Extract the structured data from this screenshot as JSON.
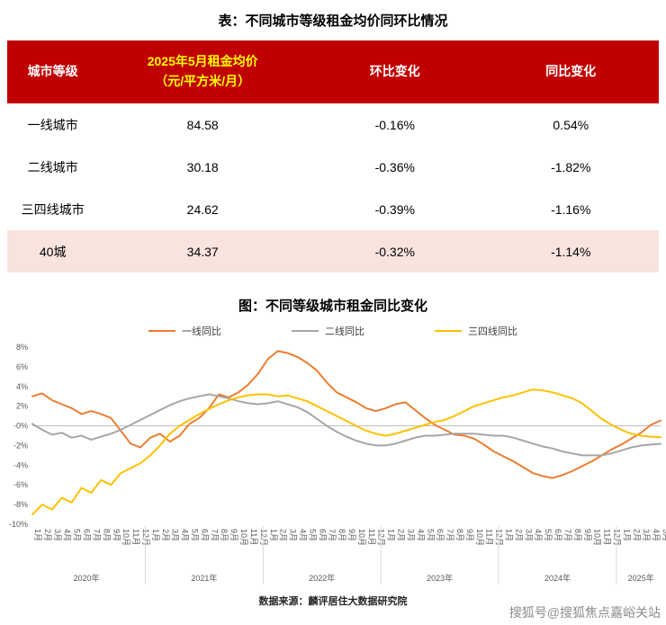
{
  "page": {
    "table_title": "表：不同城市等级租金均价同环比情况",
    "chart_title": "图：不同等级城市租金同比变化",
    "source": "数据来源：麟评居住大数据研究院",
    "watermark": "搜狐号@搜狐焦点嘉峪关站"
  },
  "colors": {
    "header_bg": "#C00000",
    "header_text": "#FFFFFF",
    "header_accent_text": "#FFFF00",
    "highlight_row_bg": "#F9E3DE",
    "tier1_line": "#ED7D31",
    "tier2_line": "#A6A6A6",
    "tier34_line": "#FFC000",
    "zero_axis": "#BFBFBF"
  },
  "table": {
    "headers": [
      "城市等级",
      "2025年5月租金均价\n（元/平方米/月）",
      "环比变化",
      "同比变化"
    ],
    "rows": [
      {
        "tier": "一线城市",
        "price": "84.58",
        "mom": "-0.16%",
        "yoy": "0.54%",
        "highlight": false
      },
      {
        "tier": "二线城市",
        "price": "30.18",
        "mom": "-0.36%",
        "yoy": "-1.82%",
        "highlight": false
      },
      {
        "tier": "三四线城市",
        "price": "24.62",
        "mom": "-0.39%",
        "yoy": "-1.16%",
        "highlight": false
      },
      {
        "tier": "40城",
        "price": "34.37",
        "mom": "-0.32%",
        "yoy": "-1.14%",
        "highlight": true
      }
    ]
  },
  "chart_data": {
    "type": "line",
    "title": "图：不同等级城市租金同比变化",
    "ylim": [
      -10,
      8
    ],
    "yticks": [
      "8%",
      "6%",
      "4%",
      "2%",
      "-0%",
      "-2%",
      "-4%",
      "-6%",
      "-8%",
      "-10%"
    ],
    "grid": "zero-line-only",
    "legend_position": "top",
    "x": [
      "1月",
      "2月",
      "3月",
      "4月",
      "5月",
      "6月",
      "7月",
      "8月",
      "9月",
      "10月",
      "11月",
      "12月",
      "1月",
      "2月",
      "3月",
      "4月",
      "5月",
      "6月",
      "7月",
      "8月",
      "9月",
      "10月",
      "11月",
      "12月",
      "1月",
      "2月",
      "3月",
      "4月",
      "5月",
      "6月",
      "7月",
      "8月",
      "9月",
      "10月",
      "11月",
      "12月",
      "1月",
      "2月",
      "3月",
      "4月",
      "5月",
      "6月",
      "7月",
      "8月",
      "9月",
      "10月",
      "11月",
      "12月",
      "1月",
      "2月",
      "3月",
      "4月",
      "5月",
      "6月",
      "7月",
      "8月",
      "9月",
      "10月",
      "11月",
      "12月",
      "1月",
      "2月",
      "3月",
      "4月",
      "5月"
    ],
    "year_groups": [
      {
        "label": "2020年",
        "months": 12
      },
      {
        "label": "2021年",
        "months": 12
      },
      {
        "label": "2022年",
        "months": 12
      },
      {
        "label": "2023年",
        "months": 12
      },
      {
        "label": "2024年",
        "months": 12
      },
      {
        "label": "2025年",
        "months": 5
      }
    ],
    "series": [
      {
        "name": "一线同比",
        "color": "#ED7D31",
        "values": [
          3.0,
          3.3,
          2.6,
          2.2,
          1.8,
          1.2,
          1.5,
          1.2,
          0.8,
          -0.5,
          -1.8,
          -2.2,
          -1.2,
          -0.8,
          -1.6,
          -1.0,
          0.2,
          0.8,
          1.8,
          3.2,
          2.9,
          3.4,
          4.2,
          5.3,
          6.8,
          7.6,
          7.4,
          7.0,
          6.4,
          5.6,
          4.4,
          3.4,
          2.9,
          2.4,
          1.8,
          1.5,
          1.8,
          2.2,
          2.4,
          1.6,
          0.8,
          0.1,
          -0.4,
          -0.9,
          -1.0,
          -1.3,
          -1.9,
          -2.6,
          -3.1,
          -3.6,
          -4.2,
          -4.8,
          -5.1,
          -5.3,
          -5.0,
          -4.6,
          -4.1,
          -3.6,
          -3.0,
          -2.4,
          -1.9,
          -1.3,
          -0.7,
          0.1,
          0.54
        ]
      },
      {
        "name": "二线同比",
        "color": "#A6A6A6",
        "values": [
          0.2,
          -0.4,
          -0.9,
          -0.7,
          -1.2,
          -1.0,
          -1.4,
          -1.1,
          -0.8,
          -0.4,
          0.1,
          0.6,
          1.1,
          1.6,
          2.1,
          2.5,
          2.8,
          3.0,
          3.2,
          3.0,
          2.8,
          2.5,
          2.3,
          2.2,
          2.3,
          2.5,
          2.2,
          1.9,
          1.4,
          0.7,
          0.0,
          -0.6,
          -1.1,
          -1.5,
          -1.8,
          -2.0,
          -2.0,
          -1.8,
          -1.5,
          -1.2,
          -1.0,
          -1.0,
          -0.9,
          -0.8,
          -0.8,
          -0.8,
          -0.9,
          -1.0,
          -1.0,
          -1.2,
          -1.5,
          -1.8,
          -2.1,
          -2.3,
          -2.6,
          -2.8,
          -3.0,
          -3.0,
          -3.0,
          -2.8,
          -2.5,
          -2.2,
          -2.0,
          -1.9,
          -1.82
        ]
      },
      {
        "name": "三四线同比",
        "color": "#FFC000",
        "values": [
          -9.0,
          -8.0,
          -8.5,
          -7.3,
          -7.8,
          -6.3,
          -6.8,
          -5.5,
          -6.0,
          -4.8,
          -4.3,
          -3.8,
          -3.0,
          -2.0,
          -0.8,
          0.0,
          0.6,
          1.2,
          1.7,
          2.2,
          2.6,
          2.9,
          3.1,
          3.2,
          3.2,
          3.0,
          3.1,
          2.8,
          2.5,
          2.0,
          1.5,
          1.0,
          0.5,
          0.0,
          -0.5,
          -0.8,
          -1.0,
          -0.8,
          -0.5,
          -0.2,
          0.1,
          0.4,
          0.6,
          1.0,
          1.5,
          2.0,
          2.3,
          2.6,
          2.9,
          3.1,
          3.4,
          3.7,
          3.6,
          3.4,
          3.1,
          2.8,
          2.3,
          1.5,
          0.7,
          0.1,
          -0.4,
          -0.8,
          -1.0,
          -1.1,
          -1.16
        ]
      }
    ]
  }
}
